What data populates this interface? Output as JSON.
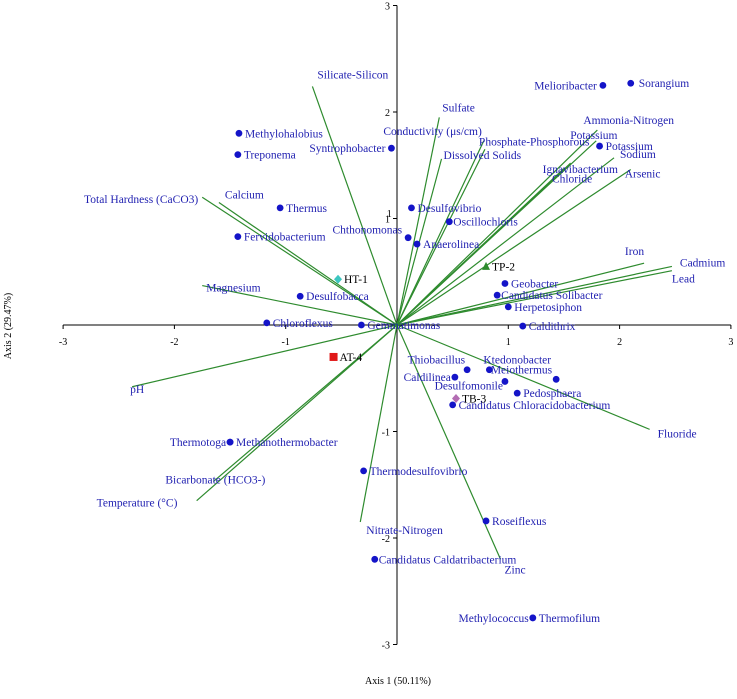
{
  "colors": {
    "axis": "#000000",
    "vector": "#2e8b2e",
    "taxa": "#1414c8",
    "taxa_label": "#1f1fb0",
    "sample_HT": "#3cc6c0",
    "sample_TP": "#2e8b2e",
    "sample_AT": "#e01818",
    "sample_TB": "#b36db3"
  },
  "chart_data": {
    "type": "scatter",
    "subtype": "biplot",
    "title": "",
    "xlabel": "Axis 1 (50.11%)",
    "ylabel": "Axis 2 (29.47%)",
    "xlim": [
      -3,
      3
    ],
    "ylim": [
      -3,
      3
    ],
    "grid": false,
    "x_ticks": [
      "-3",
      "-2",
      "-1",
      "0",
      "1",
      "2",
      "3"
    ],
    "y_ticks": [
      "3",
      "2",
      "1",
      "0",
      "-1",
      "-2",
      "-3"
    ],
    "vectors": [
      {
        "label": "Silicate-Silicon",
        "x": -0.76,
        "y": 2.24
      },
      {
        "label": "Sulfate",
        "x": 0.38,
        "y": 1.95
      },
      {
        "label": "Conductivity (μs/cm)",
        "x": 0.78,
        "y": 1.73
      },
      {
        "label": "Dissolved Solids",
        "x": 0.4,
        "y": 1.56
      },
      {
        "label": "Phosphate-Phosphorous",
        "x": 0.79,
        "y": 1.65
      },
      {
        "label": "Ammonia-Nitrogen",
        "x": 1.8,
        "y": 1.83
      },
      {
        "label": "Potassium",
        "x": 1.79,
        "y": 1.73
      },
      {
        "label": "Ignavibacterium",
        "x": 1.56,
        "y": 1.52
      },
      {
        "label": "Chloride",
        "x": 1.5,
        "y": 1.47
      },
      {
        "label": "Sodium",
        "x": 1.95,
        "y": 1.57
      },
      {
        "label": "Arsenic",
        "x": 2.1,
        "y": 1.46
      },
      {
        "label": "Total Hardness (CaCO3)",
        "x": -1.75,
        "y": 1.2
      },
      {
        "label": "Calcium",
        "x": -1.6,
        "y": 1.15
      },
      {
        "label": "Iron",
        "x": 2.22,
        "y": 0.58
      },
      {
        "label": "Cadmium",
        "x": 2.47,
        "y": 0.55
      },
      {
        "label": "Lead",
        "x": 2.47,
        "y": 0.51
      },
      {
        "label": "Magnesium",
        "x": -1.75,
        "y": 0.37
      },
      {
        "label": "pH",
        "x": -2.38,
        "y": -0.58
      },
      {
        "label": "Fluoride",
        "x": 2.27,
        "y": -0.98
      },
      {
        "label": "Bicarbonate (HCO3-)",
        "x": -1.65,
        "y": -1.47
      },
      {
        "label": "Temperature (°C)",
        "x": -1.8,
        "y": -1.65
      },
      {
        "label": "Nitrate-Nitrogen",
        "x": -0.33,
        "y": -1.85
      },
      {
        "label": "Zinc",
        "x": 0.93,
        "y": -2.2
      }
    ],
    "taxa": [
      {
        "label": "Melioribacter",
        "x": 1.85,
        "y": 2.25
      },
      {
        "label": "Sorangium",
        "x": 2.1,
        "y": 2.27
      },
      {
        "label": "Methylohalobius",
        "x": -1.42,
        "y": 1.8
      },
      {
        "label": "Syntrophobacter",
        "x": -0.05,
        "y": 1.66
      },
      {
        "label": "Treponema",
        "x": -1.43,
        "y": 1.6
      },
      {
        "label": "Potassium",
        "x": 1.82,
        "y": 1.68
      },
      {
        "label": "Thermus",
        "x": -1.05,
        "y": 1.1
      },
      {
        "label": "Desulfovibrio",
        "x": 0.13,
        "y": 1.1
      },
      {
        "label": "Oscillochloris",
        "x": 0.47,
        "y": 0.97
      },
      {
        "label": "Chthonomonas",
        "x": 0.1,
        "y": 0.82
      },
      {
        "label": "Fervidobacterium",
        "x": -1.43,
        "y": 0.83
      },
      {
        "label": "Anaerolinea",
        "x": 0.18,
        "y": 0.76
      },
      {
        "label": "Geobacter",
        "x": 0.97,
        "y": 0.39
      },
      {
        "label": "Candidatus Solibacter",
        "x": 0.9,
        "y": 0.28
      },
      {
        "label": "Desulfobacca",
        "x": -0.87,
        "y": 0.27
      },
      {
        "label": "Herpetosiphon",
        "x": 1.0,
        "y": 0.17
      },
      {
        "label": "Chloroflexus",
        "x": -1.17,
        "y": 0.02
      },
      {
        "label": "Gemmatimonas",
        "x": -0.32,
        "y": 0.0
      },
      {
        "label": "Caldithrix",
        "x": 1.13,
        "y": -0.01
      },
      {
        "label": "Thiobacillus",
        "x": 0.63,
        "y": -0.42
      },
      {
        "label": "Ktedonobacter",
        "x": 0.83,
        "y": -0.42
      },
      {
        "label": "Caldilinea",
        "x": 0.52,
        "y": -0.49
      },
      {
        "label": "Desulfomonile",
        "x": 0.97,
        "y": -0.53
      },
      {
        "label": "Meiothermus",
        "x": 1.43,
        "y": -0.51
      },
      {
        "label": "Pedosphaera",
        "x": 1.08,
        "y": -0.64
      },
      {
        "label": "Candidatus Chloracidobacterium",
        "x": 0.5,
        "y": -0.75
      },
      {
        "label": "Thermotoga",
        "x": -1.5,
        "y": -1.1
      },
      {
        "label": "Methanothermobacter",
        "x": -1.5,
        "y": -1.1
      },
      {
        "label": "Thermodesulfovibrio",
        "x": -0.3,
        "y": -1.37
      },
      {
        "label": "Roseiflexus",
        "x": 0.8,
        "y": -1.84
      },
      {
        "label": "Candidatus Caldatribacterium",
        "x": -0.2,
        "y": -2.2
      },
      {
        "label": "Methylococcus",
        "x": 1.22,
        "y": -2.75
      },
      {
        "label": "Thermofilum",
        "x": 1.22,
        "y": -2.75
      }
    ],
    "samples": [
      {
        "label": "HT-1",
        "x": -0.53,
        "y": 0.43,
        "shape": "diamond",
        "color_key": "sample_HT"
      },
      {
        "label": "TP-2",
        "x": 0.8,
        "y": 0.55,
        "shape": "triangle",
        "color_key": "sample_TP"
      },
      {
        "label": "AT-4",
        "x": -0.57,
        "y": -0.3,
        "shape": "square",
        "color_key": "sample_AT"
      },
      {
        "label": "TB-3",
        "x": 0.53,
        "y": -0.69,
        "shape": "diamond",
        "color_key": "sample_TB"
      }
    ],
    "annotations": [
      {
        "label": "1",
        "x": -0.07,
        "y": 1.05
      }
    ]
  }
}
